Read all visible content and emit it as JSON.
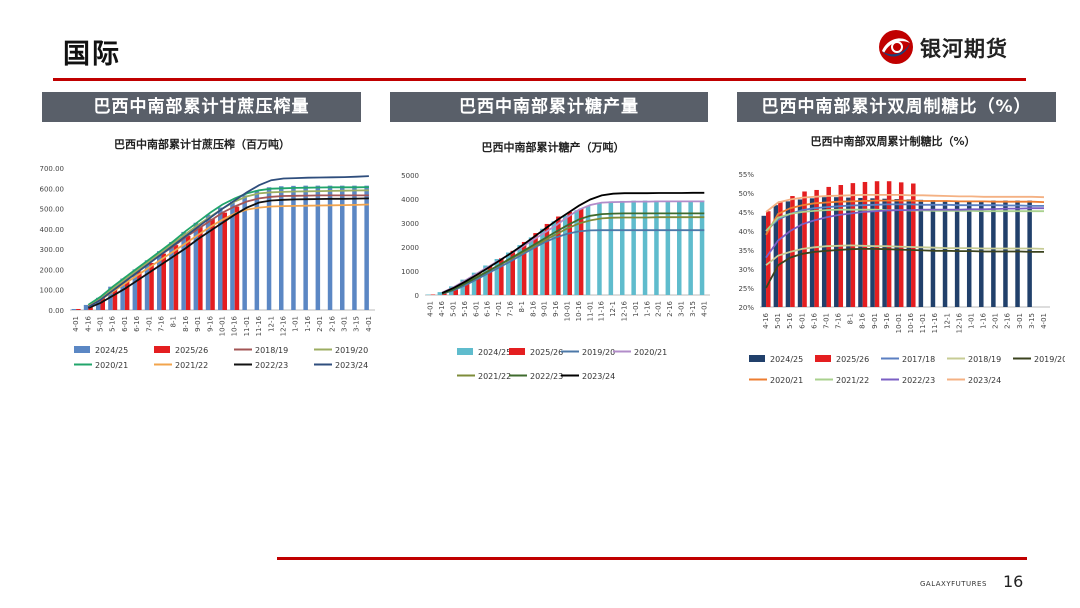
{
  "page": {
    "title": "国际",
    "logo_text": "银河期货",
    "footer_brand": "GALAXYFUTURES",
    "page_number": "16",
    "brand_color": "#c00000"
  },
  "panels": [
    {
      "header": "巴西中南部累计甘蔗压榨量"
    },
    {
      "header": "巴西中南部累计糖产量"
    },
    {
      "header": "巴西中南部累计双周制糖比（%）"
    }
  ],
  "chart_data": [
    {
      "type": "bar",
      "title": "巴西中南部累计甘蔗压榨（百万吨）",
      "categories": [
        "4-01",
        "4-16",
        "5-01",
        "5-16",
        "6-01",
        "6-16",
        "7-01",
        "7-16",
        "8-1",
        "8-16",
        "9-01",
        "9-16",
        "10-01",
        "10-16",
        "11-01",
        "11-16",
        "12-1",
        "12-16",
        "1-01",
        "1-16",
        "2-01",
        "2-16",
        "3-01",
        "3-15",
        "4-01"
      ],
      "y_ticks": [
        "0.00",
        "100.00",
        "200.00",
        "300.00",
        "400.00",
        "500.00",
        "600.00",
        "700.00"
      ],
      "ylim": [
        0,
        700
      ],
      "bar_series": [
        {
          "name": "2024/25",
          "color": "#5b87c4",
          "values": [
            5,
            25,
            60,
            115,
            155,
            200,
            245,
            290,
            335,
            385,
            430,
            470,
            505,
            535,
            565,
            590,
            605,
            610,
            612,
            613,
            613,
            613,
            613,
            613,
            613
          ]
        },
        {
          "name": "2025/26",
          "color": "#e41e20",
          "values": [
            5,
            22,
            58,
            105,
            150,
            190,
            232,
            278,
            320,
            365,
            410,
            450,
            480,
            510,
            null,
            null,
            null,
            null,
            null,
            null,
            null,
            null,
            null,
            null,
            null
          ]
        }
      ],
      "line_series": [
        {
          "name": "2018/19",
          "color": "#a35555",
          "values": [
            null,
            20,
            55,
            100,
            145,
            190,
            235,
            275,
            315,
            360,
            400,
            440,
            480,
            510,
            535,
            550,
            558,
            562,
            563,
            564,
            565,
            565,
            565,
            565,
            565
          ]
        },
        {
          "name": "2019/20",
          "color": "#9cad62",
          "values": [
            null,
            20,
            60,
            105,
            150,
            195,
            240,
            285,
            330,
            375,
            420,
            460,
            500,
            535,
            560,
            575,
            580,
            582,
            584,
            585,
            586,
            587,
            588,
            589,
            590
          ]
        },
        {
          "name": "2020/21",
          "color": "#21a56b",
          "values": [
            null,
            25,
            65,
            115,
            160,
            205,
            250,
            295,
            340,
            390,
            435,
            480,
            520,
            550,
            575,
            590,
            598,
            600,
            602,
            603,
            604,
            605,
            605,
            605,
            606
          ]
        },
        {
          "name": "2021/22",
          "color": "#f2a44c",
          "values": [
            null,
            18,
            50,
            90,
            130,
            170,
            210,
            250,
            290,
            330,
            370,
            410,
            445,
            475,
            495,
            505,
            510,
            512,
            513,
            514,
            515,
            516,
            517,
            518,
            520
          ]
        },
        {
          "name": "2022/23",
          "color": "#111111",
          "values": [
            null,
            10,
            35,
            70,
            105,
            145,
            185,
            225,
            265,
            305,
            350,
            390,
            430,
            470,
            505,
            530,
            540,
            543,
            545,
            546,
            547,
            548,
            548,
            549,
            550
          ]
        },
        {
          "name": "2023/24",
          "color": "#2f4e7d",
          "values": [
            null,
            15,
            50,
            95,
            140,
            185,
            230,
            275,
            320,
            365,
            410,
            455,
            500,
            540,
            580,
            615,
            640,
            648,
            650,
            652,
            653,
            654,
            655,
            657,
            660
          ]
        }
      ]
    },
    {
      "type": "bar",
      "title": "巴西中南部累计糖产（万吨）",
      "categories": [
        "4-01",
        "4-16",
        "5-01",
        "5-16",
        "6-01",
        "6-16",
        "7-01",
        "7-16",
        "8-1",
        "8-16",
        "9-01",
        "9-16",
        "10-01",
        "10-16",
        "11-01",
        "11-16",
        "12-1",
        "12-16",
        "1-01",
        "1-16",
        "2-01",
        "2-16",
        "3-01",
        "3-15",
        "4-01"
      ],
      "y_ticks": [
        "0",
        "1000",
        "2000",
        "3000",
        "4000",
        "5000"
      ],
      "ylim": [
        0,
        5000
      ],
      "bar_series": [
        {
          "name": "2024/25",
          "color": "#5fbccd",
          "values": [
            20,
            120,
            360,
            640,
            930,
            1230,
            1500,
            1770,
            2080,
            2400,
            2760,
            3070,
            3320,
            3530,
            3720,
            3850,
            3900,
            3920,
            3930,
            3935,
            3935,
            3935,
            3935,
            3935,
            3935
          ]
        },
        {
          "name": "2025/26",
          "color": "#e41e20",
          "values": [
            20,
            130,
            350,
            630,
            920,
            1210,
            1530,
            1840,
            2210,
            2580,
            2960,
            3270,
            3460,
            3600,
            null,
            null,
            null,
            null,
            null,
            null,
            null,
            null,
            null,
            null,
            null
          ]
        }
      ],
      "line_series": [
        {
          "name": "2019/20",
          "color": "#4c78a8",
          "values": [
            null,
            50,
            190,
            400,
            640,
            900,
            1150,
            1400,
            1680,
            1950,
            2200,
            2400,
            2550,
            2650,
            2690,
            2700,
            2700,
            2700,
            2700,
            2700,
            2700,
            2700,
            2700,
            2700,
            2700
          ]
        },
        {
          "name": "2020/21",
          "color": "#b28cc9",
          "values": [
            null,
            100,
            320,
            600,
            880,
            1160,
            1440,
            1720,
            2000,
            2300,
            2600,
            2900,
            3250,
            3550,
            3750,
            3850,
            3870,
            3880,
            3890,
            3890,
            3900,
            3900,
            3900,
            3900,
            3900
          ]
        },
        {
          "name": "2021/22",
          "color": "#7e8c3a",
          "values": [
            null,
            80,
            270,
            500,
            740,
            990,
            1240,
            1500,
            1760,
            2020,
            2280,
            2530,
            2780,
            2980,
            3110,
            3190,
            3220,
            3230,
            3230,
            3230,
            3240,
            3240,
            3240,
            3240,
            3240
          ]
        },
        {
          "name": "2022/23",
          "color": "#3f6b2e",
          "values": [
            null,
            60,
            230,
            470,
            720,
            980,
            1250,
            1530,
            1800,
            2080,
            2360,
            2640,
            2910,
            3150,
            3300,
            3370,
            3390,
            3400,
            3400,
            3400,
            3400,
            3400,
            3400,
            3400,
            3400
          ]
        },
        {
          "name": "2023/24",
          "color": "#000000",
          "values": [
            null,
            80,
            290,
            550,
            830,
            1120,
            1420,
            1730,
            2060,
            2400,
            2750,
            3090,
            3410,
            3720,
            3980,
            4150,
            4220,
            4240,
            4240,
            4240,
            4250,
            4250,
            4250,
            4260,
            4260
          ]
        }
      ]
    },
    {
      "type": "bar",
      "title": "巴西中南部双周累计制糖比（%）",
      "categories": [
        "4-16",
        "5-01",
        "5-16",
        "6-01",
        "6-16",
        "7-01",
        "7-16",
        "8-1",
        "8-16",
        "9-01",
        "9-16",
        "10-01",
        "10-16",
        "11-01",
        "11-16",
        "12-1",
        "12-16",
        "1-01",
        "1-16",
        "2-01",
        "2-16",
        "3-01",
        "3-15",
        "4-01"
      ],
      "y_ticks": [
        "20%",
        "25%",
        "30%",
        "35%",
        "40%",
        "45%",
        "50%",
        "55%"
      ],
      "ylim": [
        20,
        55
      ],
      "bar_series": [
        {
          "name": "2024/25",
          "color": "#21406b",
          "values": [
            44,
            46.8,
            47.8,
            48.3,
            48.6,
            48.9,
            48.9,
            48.8,
            48.7,
            48.6,
            48.5,
            48.4,
            48.3,
            48.2,
            48.1,
            48.0,
            48.0,
            48.0,
            48.0,
            48.0,
            48.0,
            48.0,
            48.0,
            null
          ]
        },
        {
          "name": "2025/26",
          "color": "#e41e20",
          "values": [
            45.2,
            47.8,
            49.2,
            50.4,
            50.8,
            51.6,
            52.1,
            52.6,
            52.9,
            53.1,
            53.1,
            52.8,
            52.5,
            null,
            null,
            null,
            null,
            null,
            null,
            null,
            null,
            null,
            null,
            null
          ]
        }
      ],
      "line_series": [
        {
          "name": "2017/18",
          "color": "#5b7fc2",
          "values": [
            40,
            43,
            44.5,
            45.5,
            46,
            46.3,
            46.5,
            46.7,
            46.8,
            46.9,
            47,
            47,
            47,
            46.9,
            46.9,
            46.9,
            46.8,
            46.8,
            46.8,
            46.8,
            46.7,
            46.7,
            46.6,
            46.6
          ]
        },
        {
          "name": "2018/19",
          "color": "#c7cc95",
          "values": [
            31,
            33.5,
            34.5,
            35.3,
            35.7,
            36,
            36.1,
            36.2,
            36.1,
            36,
            36,
            35.9,
            35.8,
            35.7,
            35.6,
            35.5,
            35.5,
            35.5,
            35.4,
            35.4,
            35.4,
            35.4,
            35.4,
            35.3
          ]
        },
        {
          "name": "2019/20",
          "color": "#3b431f",
          "values": [
            25,
            31,
            33,
            34,
            34.5,
            34.8,
            35,
            35.2,
            35.3,
            35.3,
            35.2,
            35.1,
            35,
            34.9,
            34.8,
            34.8,
            34.7,
            34.7,
            34.6,
            34.6,
            34.6,
            34.6,
            34.5,
            34.5
          ]
        },
        {
          "name": "2020/21",
          "color": "#ed7d31",
          "values": [
            39,
            44.5,
            46,
            46.8,
            47.3,
            47.5,
            47.7,
            47.8,
            47.9,
            48,
            48,
            48,
            48,
            47.9,
            47.9,
            47.9,
            47.8,
            47.8,
            47.8,
            47.7,
            47.7,
            47.7,
            47.7,
            47.6
          ]
        },
        {
          "name": "2021/22",
          "color": "#a9d18e",
          "values": [
            40,
            43.5,
            44.5,
            45,
            45.3,
            45.5,
            45.6,
            45.6,
            45.6,
            45.6,
            45.5,
            45.5,
            45.4,
            45.4,
            45.3,
            45.3,
            45.3,
            45.3,
            45.2,
            45.2,
            45.2,
            45.2,
            45.2,
            45.2
          ]
        },
        {
          "name": "2022/23",
          "color": "#7b5fc4",
          "values": [
            33,
            37.5,
            40,
            41.8,
            42.8,
            43.6,
            44.2,
            44.6,
            45,
            45.2,
            45.4,
            45.5,
            45.5,
            45.6,
            45.6,
            45.6,
            45.6,
            45.7,
            45.7,
            45.8,
            45.9,
            45.9,
            46,
            46
          ]
        },
        {
          "name": "2023/24",
          "color": "#f4b183",
          "values": [
            45,
            47.5,
            48.3,
            48.8,
            49,
            49.2,
            49.3,
            49.4,
            49.5,
            49.5,
            49.5,
            49.5,
            49.4,
            49.4,
            49.3,
            49.2,
            49.1,
            49.1,
            49.0,
            49.0,
            49.0,
            49.0,
            49.0,
            48.9
          ]
        }
      ]
    }
  ]
}
